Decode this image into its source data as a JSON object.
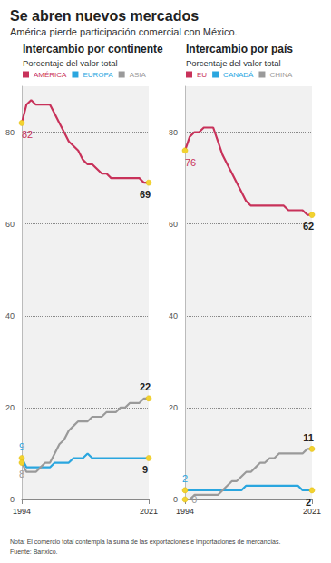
{
  "title": "Se abren nuevos mercados",
  "subtitle": "América pierde participación comercial con México.",
  "notes": [
    "Nota: El comercio total contempla la suma de las exportaciones e importaciones de mercancías.",
    "Fuente: Banxico."
  ],
  "chart_data": [
    {
      "type": "line",
      "title": "Intercambio por continente",
      "subtitle": "Porcentaje del valor total",
      "x": [
        1994,
        1995,
        1996,
        1997,
        1998,
        1999,
        2000,
        2001,
        2002,
        2003,
        2004,
        2005,
        2006,
        2007,
        2008,
        2009,
        2010,
        2011,
        2012,
        2013,
        2014,
        2015,
        2016,
        2017,
        2018,
        2019,
        2020,
        2021
      ],
      "xlim": [
        1994,
        2021
      ],
      "xticks": [
        1994,
        2021
      ],
      "ylim": [
        0,
        90
      ],
      "yticks": [
        0,
        20,
        40,
        60,
        80
      ],
      "grid": true,
      "legend": "top-left",
      "series": [
        {
          "name": "AMÉRICA",
          "color": "#c8325a",
          "values": [
            82,
            86,
            87,
            86,
            86,
            86,
            86,
            84,
            82,
            80,
            78,
            77,
            76,
            74,
            73,
            73,
            72,
            71,
            71,
            70,
            70,
            70,
            70,
            70,
            70,
            70,
            69,
            69
          ]
        },
        {
          "name": "EUROPA",
          "color": "#2aa6df",
          "values": [
            9,
            7,
            7,
            7,
            7,
            7,
            7,
            8,
            8,
            8,
            8,
            9,
            9,
            9,
            10,
            9,
            9,
            9,
            9,
            9,
            9,
            9,
            9,
            9,
            9,
            9,
            9,
            9
          ]
        },
        {
          "name": "ASIA",
          "color": "#9a9a9a",
          "values": [
            8,
            6,
            6,
            6,
            7,
            8,
            8,
            10,
            12,
            13,
            15,
            16,
            17,
            17,
            17,
            18,
            18,
            18,
            19,
            19,
            19,
            20,
            20,
            21,
            21,
            21,
            22,
            22
          ]
        }
      ],
      "annotations": [
        {
          "series": "AMÉRICA",
          "x": 1994,
          "text": "82"
        },
        {
          "series": "AMÉRICA",
          "x": 2021,
          "text": "69"
        },
        {
          "series": "EUROPA",
          "x": 1994,
          "text": "9"
        },
        {
          "series": "EUROPA",
          "x": 2021,
          "text": "9"
        },
        {
          "series": "ASIA",
          "x": 1994,
          "text": "8"
        },
        {
          "series": "ASIA",
          "x": 2021,
          "text": "22"
        }
      ]
    },
    {
      "type": "line",
      "title": "Intercambio por país",
      "subtitle": "Porcentaje del valor total",
      "x": [
        1994,
        1995,
        1996,
        1997,
        1998,
        1999,
        2000,
        2001,
        2002,
        2003,
        2004,
        2005,
        2006,
        2007,
        2008,
        2009,
        2010,
        2011,
        2012,
        2013,
        2014,
        2015,
        2016,
        2017,
        2018,
        2019,
        2020,
        2021
      ],
      "xlim": [
        1994,
        2021
      ],
      "xticks": [
        1994,
        2021
      ],
      "ylim": [
        0,
        90
      ],
      "yticks": [
        0,
        20,
        40,
        60,
        80
      ],
      "grid": true,
      "legend": "top-left",
      "series": [
        {
          "name": "EU",
          "color": "#c8325a",
          "values": [
            76,
            79,
            80,
            80,
            81,
            81,
            81,
            78,
            75,
            73,
            71,
            69,
            67,
            65,
            64,
            64,
            64,
            64,
            64,
            64,
            64,
            64,
            63,
            63,
            63,
            63,
            62,
            62
          ]
        },
        {
          "name": "CANADÁ",
          "color": "#2aa6df",
          "values": [
            2,
            2,
            2,
            2,
            2,
            2,
            2,
            2,
            2,
            2,
            2,
            2,
            2,
            3,
            3,
            3,
            3,
            3,
            3,
            3,
            3,
            3,
            3,
            3,
            3,
            2,
            2,
            2
          ]
        },
        {
          "name": "CHINA",
          "color": "#9a9a9a",
          "values": [
            0,
            0,
            1,
            1,
            1,
            1,
            1,
            1,
            2,
            3,
            4,
            4,
            5,
            6,
            6,
            7,
            8,
            8,
            9,
            9,
            10,
            10,
            10,
            10,
            10,
            10,
            11,
            11
          ]
        }
      ],
      "annotations": [
        {
          "series": "EU",
          "x": 1994,
          "text": "76"
        },
        {
          "series": "EU",
          "x": 2021,
          "text": "62"
        },
        {
          "series": "CANADÁ",
          "x": 1994,
          "text": "2"
        },
        {
          "series": "CANADÁ",
          "x": 2021,
          "text": "2"
        },
        {
          "series": "CHINA",
          "x": 1994,
          "text": "0"
        },
        {
          "series": "CHINA",
          "x": 2021,
          "text": "11"
        }
      ]
    }
  ]
}
